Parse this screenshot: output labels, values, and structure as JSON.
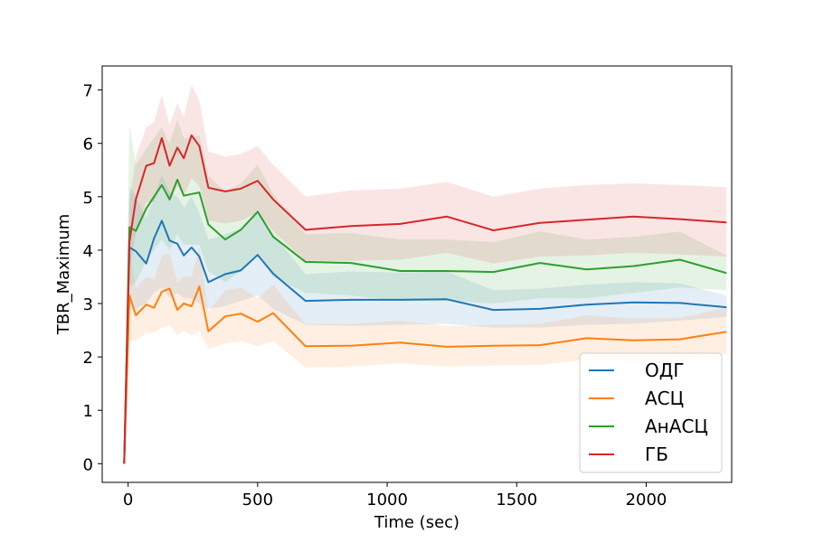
{
  "chart_data": {
    "type": "line",
    "xlabel": "Time (sec)",
    "ylabel": "TBR_Maximum",
    "xlim": [
      -100,
      2330
    ],
    "ylim": [
      -0.35,
      7.45
    ],
    "xticks": [
      0,
      500,
      1000,
      1500,
      2000
    ],
    "yticks": [
      0,
      1,
      2,
      3,
      4,
      5,
      6,
      7
    ],
    "grid": false,
    "legend_position": "lower-right",
    "series": [
      {
        "name": "ОДГ",
        "color": "#1f77b4",
        "points": [
          [
            -15,
            0.0
          ],
          [
            5,
            4.05
          ],
          [
            30,
            3.98
          ],
          [
            70,
            3.75
          ],
          [
            100,
            4.22
          ],
          [
            130,
            4.55
          ],
          [
            160,
            4.18
          ],
          [
            190,
            4.12
          ],
          [
            215,
            3.9
          ],
          [
            245,
            4.05
          ],
          [
            275,
            3.88
          ],
          [
            310,
            3.4
          ],
          [
            375,
            3.55
          ],
          [
            435,
            3.62
          ],
          [
            500,
            3.91
          ],
          [
            560,
            3.56
          ],
          [
            685,
            3.05
          ],
          [
            860,
            3.07
          ],
          [
            1050,
            3.07
          ],
          [
            1230,
            3.08
          ],
          [
            1410,
            2.88
          ],
          [
            1590,
            2.9
          ],
          [
            1770,
            2.98
          ],
          [
            1950,
            3.02
          ],
          [
            2130,
            3.01
          ],
          [
            2310,
            2.93
          ]
        ],
        "band_low": [
          [
            -15,
            0.0
          ],
          [
            5,
            3.0
          ],
          [
            30,
            2.9
          ],
          [
            70,
            3.0
          ],
          [
            100,
            3.2
          ],
          [
            130,
            3.3
          ],
          [
            160,
            3.1
          ],
          [
            190,
            3.2
          ],
          [
            215,
            3.1
          ],
          [
            245,
            3.1
          ],
          [
            275,
            3.0
          ],
          [
            310,
            2.9
          ],
          [
            375,
            2.95
          ],
          [
            435,
            3.05
          ],
          [
            500,
            3.15
          ],
          [
            560,
            2.9
          ],
          [
            685,
            2.6
          ],
          [
            860,
            2.58
          ],
          [
            1050,
            2.6
          ],
          [
            1230,
            2.62
          ],
          [
            1410,
            2.55
          ],
          [
            1590,
            2.55
          ],
          [
            1770,
            2.6
          ],
          [
            1950,
            2.62
          ],
          [
            2130,
            2.68
          ],
          [
            2310,
            2.75
          ]
        ],
        "band_high": [
          [
            -15,
            0.0
          ],
          [
            5,
            5.2
          ],
          [
            30,
            5.0
          ],
          [
            70,
            4.6
          ],
          [
            100,
            5.0
          ],
          [
            130,
            5.4
          ],
          [
            160,
            5.1
          ],
          [
            190,
            5.0
          ],
          [
            215,
            4.8
          ],
          [
            245,
            5.0
          ],
          [
            275,
            4.7
          ],
          [
            310,
            4.2
          ],
          [
            375,
            4.3
          ],
          [
            435,
            4.4
          ],
          [
            500,
            4.7
          ],
          [
            560,
            4.3
          ],
          [
            685,
            3.55
          ],
          [
            860,
            3.6
          ],
          [
            1050,
            3.58
          ],
          [
            1230,
            3.6
          ],
          [
            1410,
            3.25
          ],
          [
            1590,
            3.28
          ],
          [
            1770,
            3.35
          ],
          [
            1950,
            3.4
          ],
          [
            2130,
            3.38
          ],
          [
            2310,
            3.15
          ]
        ]
      },
      {
        "name": "АСЦ",
        "color": "#ff7f0e",
        "points": [
          [
            -15,
            0.0
          ],
          [
            5,
            3.15
          ],
          [
            30,
            2.78
          ],
          [
            70,
            2.98
          ],
          [
            100,
            2.92
          ],
          [
            130,
            3.22
          ],
          [
            160,
            3.28
          ],
          [
            190,
            2.88
          ],
          [
            215,
            3.0
          ],
          [
            245,
            2.95
          ],
          [
            275,
            3.32
          ],
          [
            310,
            2.48
          ],
          [
            375,
            2.76
          ],
          [
            435,
            2.81
          ],
          [
            500,
            2.66
          ],
          [
            560,
            2.82
          ],
          [
            685,
            2.2
          ],
          [
            860,
            2.21
          ],
          [
            1050,
            2.27
          ],
          [
            1230,
            2.19
          ],
          [
            1410,
            2.21
          ],
          [
            1590,
            2.22
          ],
          [
            1770,
            2.35
          ],
          [
            1950,
            2.31
          ],
          [
            2130,
            2.33
          ],
          [
            2310,
            2.47
          ]
        ],
        "band_low": [
          [
            -15,
            0.0
          ],
          [
            5,
            2.3
          ],
          [
            30,
            2.3
          ],
          [
            70,
            2.45
          ],
          [
            100,
            2.45
          ],
          [
            130,
            2.55
          ],
          [
            160,
            2.6
          ],
          [
            190,
            2.4
          ],
          [
            215,
            2.5
          ],
          [
            245,
            2.4
          ],
          [
            275,
            2.5
          ],
          [
            310,
            2.15
          ],
          [
            375,
            2.25
          ],
          [
            435,
            2.3
          ],
          [
            500,
            2.2
          ],
          [
            560,
            2.3
          ],
          [
            685,
            1.8
          ],
          [
            860,
            1.82
          ],
          [
            1050,
            1.88
          ],
          [
            1230,
            1.82
          ],
          [
            1410,
            1.84
          ],
          [
            1590,
            1.85
          ],
          [
            1770,
            1.95
          ],
          [
            1950,
            1.92
          ],
          [
            2130,
            1.95
          ],
          [
            2310,
            2.05
          ]
        ],
        "band_high": [
          [
            -15,
            0.0
          ],
          [
            5,
            4.0
          ],
          [
            30,
            3.3
          ],
          [
            70,
            3.5
          ],
          [
            100,
            3.45
          ],
          [
            130,
            3.9
          ],
          [
            160,
            3.95
          ],
          [
            190,
            3.4
          ],
          [
            215,
            3.5
          ],
          [
            245,
            3.5
          ],
          [
            275,
            4.05
          ],
          [
            310,
            2.85
          ],
          [
            375,
            3.25
          ],
          [
            435,
            3.3
          ],
          [
            500,
            3.1
          ],
          [
            560,
            3.35
          ],
          [
            685,
            2.62
          ],
          [
            860,
            2.62
          ],
          [
            1050,
            2.68
          ],
          [
            1230,
            2.58
          ],
          [
            1410,
            2.6
          ],
          [
            1590,
            2.62
          ],
          [
            1770,
            2.78
          ],
          [
            1950,
            2.72
          ],
          [
            2130,
            2.73
          ],
          [
            2310,
            2.92
          ]
        ]
      },
      {
        "name": "АнАСЦ",
        "color": "#2ca02c",
        "points": [
          [
            -15,
            0.0
          ],
          [
            5,
            4.43
          ],
          [
            30,
            4.36
          ],
          [
            70,
            4.78
          ],
          [
            100,
            5.0
          ],
          [
            130,
            5.22
          ],
          [
            160,
            4.95
          ],
          [
            190,
            5.32
          ],
          [
            215,
            5.02
          ],
          [
            245,
            5.05
          ],
          [
            275,
            5.08
          ],
          [
            310,
            4.48
          ],
          [
            375,
            4.2
          ],
          [
            435,
            4.38
          ],
          [
            500,
            4.72
          ],
          [
            560,
            4.25
          ],
          [
            685,
            3.78
          ],
          [
            860,
            3.76
          ],
          [
            1050,
            3.61
          ],
          [
            1230,
            3.61
          ],
          [
            1410,
            3.59
          ],
          [
            1590,
            3.76
          ],
          [
            1770,
            3.64
          ],
          [
            1950,
            3.7
          ],
          [
            2130,
            3.82
          ],
          [
            2310,
            3.57
          ]
        ],
        "band_low": [
          [
            -15,
            0.0
          ],
          [
            5,
            3.3
          ],
          [
            30,
            3.4
          ],
          [
            70,
            3.8
          ],
          [
            100,
            4.0
          ],
          [
            130,
            4.2
          ],
          [
            160,
            4.0
          ],
          [
            190,
            4.3
          ],
          [
            215,
            4.1
          ],
          [
            245,
            4.1
          ],
          [
            275,
            4.1
          ],
          [
            310,
            3.6
          ],
          [
            375,
            3.4
          ],
          [
            435,
            3.6
          ],
          [
            500,
            3.9
          ],
          [
            560,
            3.5
          ],
          [
            685,
            3.2
          ],
          [
            860,
            3.15
          ],
          [
            1050,
            3.05
          ],
          [
            1230,
            3.05
          ],
          [
            1410,
            3.0
          ],
          [
            1590,
            3.1
          ],
          [
            1770,
            3.1
          ],
          [
            1950,
            3.2
          ],
          [
            2130,
            3.3
          ],
          [
            2310,
            3.25
          ]
        ],
        "band_high": [
          [
            -15,
            0.0
          ],
          [
            5,
            6.35
          ],
          [
            30,
            5.6
          ],
          [
            70,
            5.9
          ],
          [
            100,
            6.1
          ],
          [
            130,
            6.3
          ],
          [
            160,
            6.0
          ],
          [
            190,
            6.45
          ],
          [
            215,
            6.1
          ],
          [
            245,
            6.1
          ],
          [
            275,
            6.15
          ],
          [
            310,
            5.4
          ],
          [
            375,
            5.1
          ],
          [
            435,
            5.25
          ],
          [
            500,
            5.6
          ],
          [
            560,
            5.05
          ],
          [
            685,
            4.3
          ],
          [
            860,
            4.32
          ],
          [
            1050,
            4.2
          ],
          [
            1230,
            4.2
          ],
          [
            1410,
            4.15
          ],
          [
            1590,
            4.35
          ],
          [
            1770,
            4.2
          ],
          [
            1950,
            4.25
          ],
          [
            2130,
            4.35
          ],
          [
            2310,
            3.9
          ]
        ]
      },
      {
        "name": "ГБ",
        "color": "#d62728",
        "points": [
          [
            -15,
            0.0
          ],
          [
            5,
            4.15
          ],
          [
            30,
            4.95
          ],
          [
            70,
            5.58
          ],
          [
            100,
            5.63
          ],
          [
            130,
            6.1
          ],
          [
            160,
            5.58
          ],
          [
            190,
            5.92
          ],
          [
            215,
            5.72
          ],
          [
            245,
            6.15
          ],
          [
            275,
            5.95
          ],
          [
            310,
            5.17
          ],
          [
            375,
            5.1
          ],
          [
            435,
            5.15
          ],
          [
            500,
            5.3
          ],
          [
            560,
            4.95
          ],
          [
            685,
            4.38
          ],
          [
            860,
            4.45
          ],
          [
            1050,
            4.49
          ],
          [
            1230,
            4.63
          ],
          [
            1410,
            4.37
          ],
          [
            1590,
            4.51
          ],
          [
            1770,
            4.57
          ],
          [
            1950,
            4.63
          ],
          [
            2130,
            4.58
          ],
          [
            2310,
            4.52
          ]
        ],
        "band_low": [
          [
            -15,
            0.0
          ],
          [
            5,
            3.6
          ],
          [
            30,
            4.3
          ],
          [
            70,
            4.9
          ],
          [
            100,
            4.9
          ],
          [
            130,
            5.3
          ],
          [
            160,
            4.9
          ],
          [
            190,
            5.2
          ],
          [
            215,
            5.0
          ],
          [
            245,
            5.35
          ],
          [
            275,
            5.2
          ],
          [
            310,
            4.55
          ],
          [
            375,
            4.5
          ],
          [
            435,
            4.55
          ],
          [
            500,
            4.7
          ],
          [
            560,
            4.35
          ],
          [
            685,
            3.8
          ],
          [
            860,
            3.8
          ],
          [
            1050,
            3.82
          ],
          [
            1230,
            3.95
          ],
          [
            1410,
            3.75
          ],
          [
            1590,
            3.88
          ],
          [
            1770,
            3.9
          ],
          [
            1950,
            3.95
          ],
          [
            2130,
            3.92
          ],
          [
            2310,
            3.88
          ]
        ],
        "band_high": [
          [
            -15,
            0.0
          ],
          [
            5,
            4.9
          ],
          [
            30,
            5.75
          ],
          [
            70,
            6.3
          ],
          [
            100,
            6.4
          ],
          [
            130,
            6.9
          ],
          [
            160,
            6.35
          ],
          [
            190,
            6.75
          ],
          [
            215,
            6.5
          ],
          [
            245,
            7.1
          ],
          [
            275,
            6.8
          ],
          [
            310,
            5.85
          ],
          [
            375,
            5.75
          ],
          [
            435,
            5.8
          ],
          [
            500,
            5.95
          ],
          [
            560,
            5.6
          ],
          [
            685,
            5.0
          ],
          [
            860,
            5.12
          ],
          [
            1050,
            5.15
          ],
          [
            1230,
            5.28
          ],
          [
            1410,
            5.0
          ],
          [
            1590,
            5.15
          ],
          [
            1770,
            5.22
          ],
          [
            1950,
            5.25
          ],
          [
            2130,
            5.22
          ],
          [
            2310,
            5.18
          ]
        ]
      }
    ]
  }
}
